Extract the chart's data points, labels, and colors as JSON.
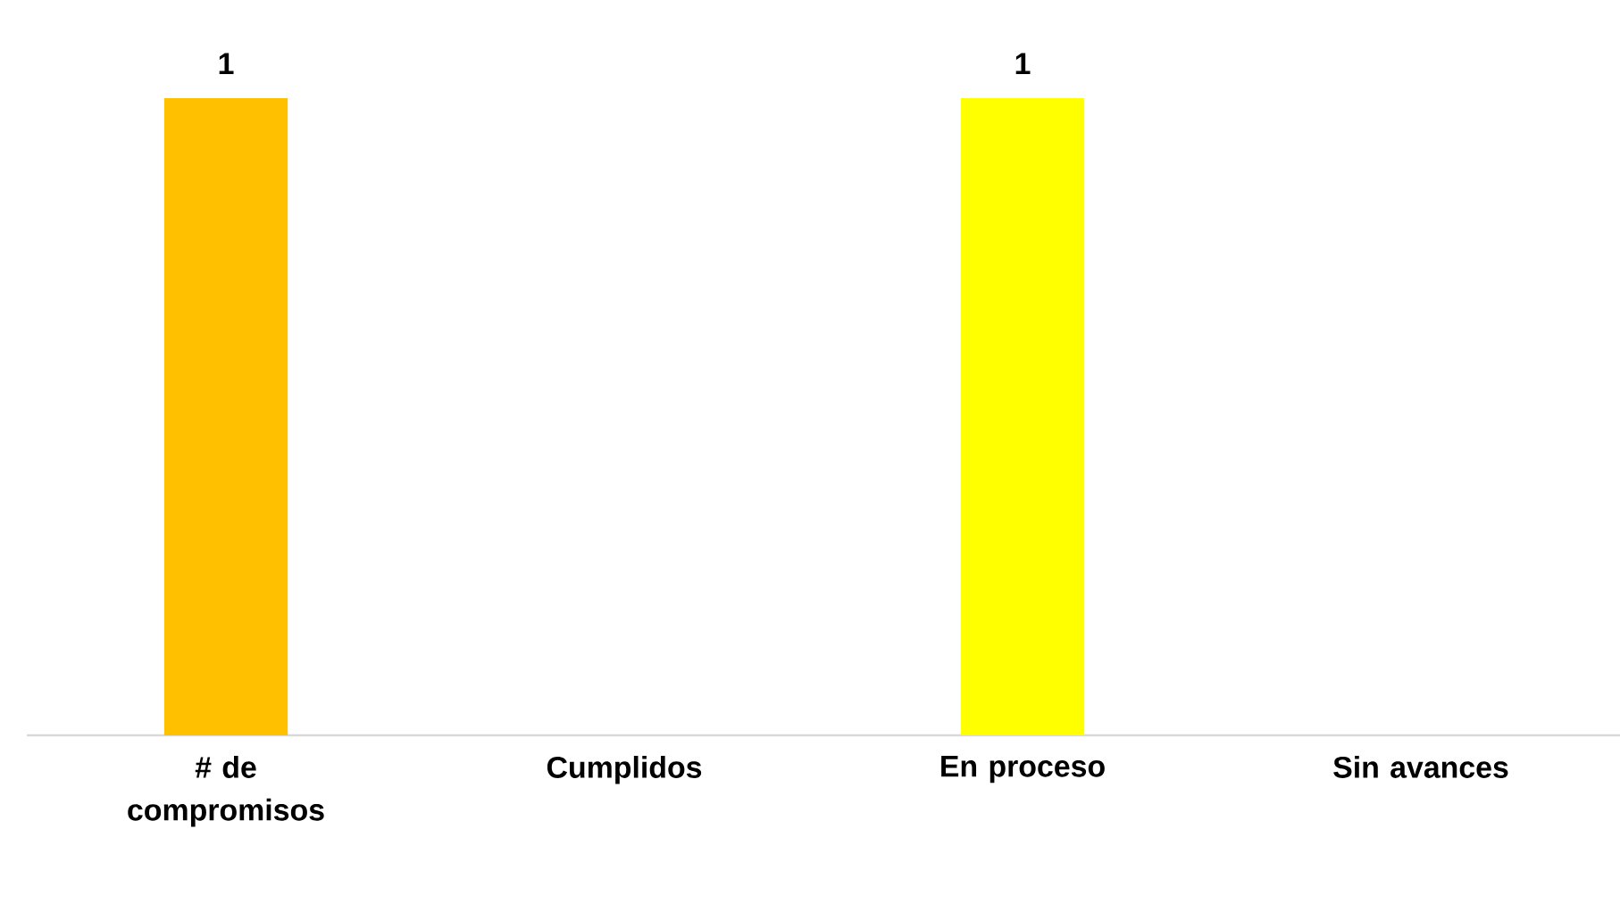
{
  "chart_data": {
    "type": "bar",
    "categories": [
      "# de compromisos",
      "Cumplidos",
      "En proceso",
      "Sin avances"
    ],
    "values": [
      1,
      0,
      1,
      0
    ],
    "colors": [
      "#ffc000",
      "#ffc000",
      "#ffff00",
      "#ffff00"
    ],
    "value_labels": [
      "1",
      null,
      "1",
      null
    ],
    "ylim": [
      0,
      1
    ]
  }
}
